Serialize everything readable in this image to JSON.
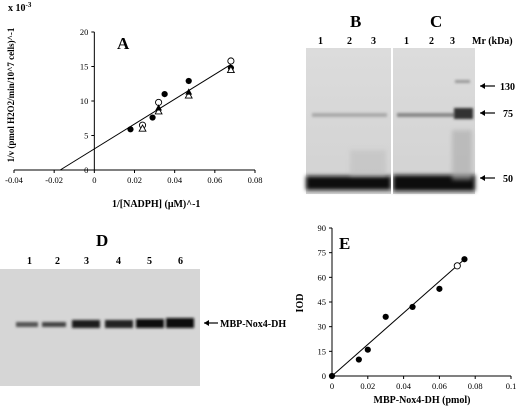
{
  "figure": {
    "panel_a": {
      "letter": "A",
      "y_multiplier": "x 10",
      "y_multiplier_exp": "-3",
      "ylabel": "1/v (pmol H2O2/min/10^7 cells)^-1",
      "xlabel": "1/[NADPH] (μM)^-1"
    },
    "panel_b": {
      "letter": "B",
      "lanes": [
        "1",
        "2",
        "3"
      ]
    },
    "panel_c": {
      "letter": "C",
      "lanes": [
        "1",
        "2",
        "3"
      ]
    },
    "mr": {
      "header": "Mr (kDa)",
      "markers": [
        "130",
        "75",
        "50"
      ]
    },
    "panel_d": {
      "letter": "D",
      "lanes": [
        "1",
        "2",
        "3",
        "4",
        "5",
        "6"
      ],
      "band_label": "MBP-Nox4-DH"
    },
    "panel_e": {
      "letter": "E",
      "ylabel": "IOD",
      "xlabel": "MBP-Nox4-DH (pmol)"
    }
  },
  "chart_data": [
    {
      "type": "scatter",
      "panel": "A",
      "title": "",
      "xlabel": "1/[NADPH] (μM)^-1",
      "ylabel": "1/v (pmol H2O2/min/10^7 cells)^-1",
      "xlim": [
        -0.04,
        0.08
      ],
      "ylim": [
        0,
        20
      ],
      "x_ticks": [
        "-0.04",
        "-0.02",
        "0",
        "0.02",
        "0.04",
        "0.06",
        "0.08"
      ],
      "y_ticks": [
        "0",
        "5",
        "10",
        "15",
        "20"
      ],
      "series": [
        {
          "marker": "filled-circle",
          "x": [
            0.018,
            0.029,
            0.035,
            0.047,
            0.068
          ],
          "y": [
            5.9,
            7.6,
            11.0,
            12.9,
            14.8
          ]
        },
        {
          "marker": "open-circle",
          "x": [
            0.024,
            0.032,
            0.068
          ],
          "y": [
            6.5,
            9.8,
            15.8
          ]
        },
        {
          "marker": "open-triangle",
          "x": [
            0.024,
            0.032,
            0.047,
            0.068
          ],
          "y": [
            6.0,
            8.5,
            10.8,
            14.5
          ]
        },
        {
          "marker": "filled-triangle",
          "x": [
            0.032,
            0.047
          ],
          "y": [
            9.0,
            11.3
          ]
        }
      ],
      "fit_line": {
        "x": [
          -0.017,
          0.068
        ],
        "y": [
          0,
          15.3
        ]
      }
    },
    {
      "type": "scatter",
      "panel": "E",
      "title": "",
      "xlabel": "MBP-Nox4-DH (pmol)",
      "ylabel": "IOD",
      "xlim": [
        0,
        0.1
      ],
      "ylim": [
        0,
        90
      ],
      "x_ticks": [
        "0",
        "0.02",
        "0.04",
        "0.06",
        "0.08",
        "0.1"
      ],
      "y_ticks": [
        "0",
        "15",
        "30",
        "45",
        "60",
        "75",
        "90"
      ],
      "series": [
        {
          "marker": "filled-circle",
          "x": [
            0.0,
            0.015,
            0.02,
            0.03,
            0.045,
            0.06,
            0.074
          ],
          "y": [
            0,
            10,
            16,
            36,
            42,
            53,
            71
          ]
        },
        {
          "marker": "open-circle",
          "x": [
            0.07
          ],
          "y": [
            67
          ]
        }
      ],
      "fit_line": {
        "x": [
          0,
          0.074
        ],
        "y": [
          0,
          71
        ]
      }
    }
  ]
}
